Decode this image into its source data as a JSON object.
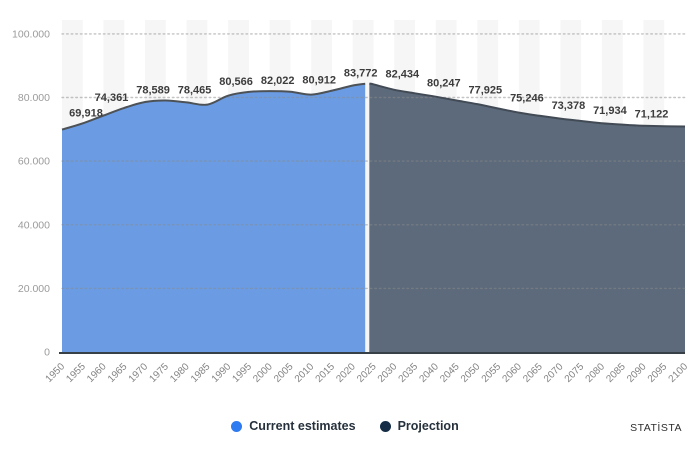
{
  "legend": [
    {
      "label": "Current estimates",
      "color": "#2e7af0"
    },
    {
      "label": "Projection",
      "color": "#142c44"
    }
  ],
  "watermark": "STATİSTA",
  "chart_data": {
    "type": "area",
    "legend_position": "bottom-center",
    "grid": "dotted-horizontal",
    "background_bands": "alternating-5-year-columns",
    "x_axis": {
      "ticks": [
        1950,
        1955,
        1960,
        1965,
        1970,
        1975,
        1980,
        1985,
        1990,
        1995,
        2000,
        2005,
        2010,
        2015,
        2020,
        2025,
        2030,
        2035,
        2040,
        2045,
        2050,
        2055,
        2060,
        2065,
        2070,
        2075,
        2080,
        2085,
        2090,
        2095,
        2100
      ],
      "range": [
        1950,
        2100
      ]
    },
    "y_axis": {
      "tick_values": [
        0,
        20000,
        40000,
        60000,
        80000,
        100000
      ],
      "tick_labels": [
        "0",
        "20.000",
        "40.000",
        "60.000",
        "80.000",
        "100.000"
      ],
      "min": 0,
      "max": 100000
    },
    "series": [
      {
        "name": "Current estimates",
        "fill": "#6598e2",
        "stroke": "#4d5257",
        "points": [
          [
            1950,
            69918
          ],
          [
            1955,
            71890
          ],
          [
            1960,
            74361
          ],
          [
            1965,
            76740
          ],
          [
            1970,
            78589
          ],
          [
            1975,
            79060
          ],
          [
            1980,
            78465
          ],
          [
            1985,
            77770
          ],
          [
            1990,
            80566
          ],
          [
            1995,
            81780
          ],
          [
            2000,
            82022
          ],
          [
            2005,
            81820
          ],
          [
            2010,
            80912
          ],
          [
            2015,
            82180
          ],
          [
            2020,
            83772
          ],
          [
            2023,
            84360
          ]
        ]
      },
      {
        "name": "Projection",
        "fill": "#556476",
        "stroke": "#424b55",
        "points": [
          [
            2024,
            84380
          ],
          [
            2025,
            84150
          ],
          [
            2030,
            82434
          ],
          [
            2035,
            81330
          ],
          [
            2040,
            80247
          ],
          [
            2045,
            79070
          ],
          [
            2050,
            77925
          ],
          [
            2055,
            76560
          ],
          [
            2060,
            75246
          ],
          [
            2065,
            74260
          ],
          [
            2070,
            73378
          ],
          [
            2075,
            72620
          ],
          [
            2080,
            71934
          ],
          [
            2085,
            71480
          ],
          [
            2090,
            71122
          ],
          [
            2095,
            70960
          ],
          [
            2100,
            70880
          ]
        ]
      }
    ],
    "data_labels": [
      [
        1950,
        69918
      ],
      [
        1960,
        74361
      ],
      [
        1970,
        78589
      ],
      [
        1980,
        78465
      ],
      [
        1990,
        80566
      ],
      [
        2000,
        82022
      ],
      [
        2010,
        80912
      ],
      [
        2020,
        83772
      ],
      [
        2030,
        82434
      ],
      [
        2040,
        80247
      ],
      [
        2050,
        77925
      ],
      [
        2060,
        75246
      ],
      [
        2070,
        73378
      ],
      [
        2080,
        71934
      ],
      [
        2090,
        71122
      ]
    ]
  }
}
